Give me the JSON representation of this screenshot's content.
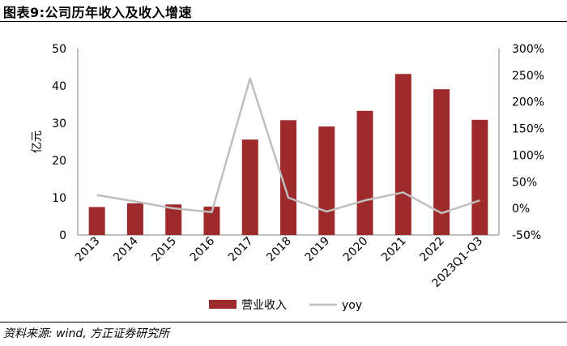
{
  "figure": {
    "title": "图表9:公司历年收入及收入增速",
    "source": "资料来源: wind, 方正证券研究所"
  },
  "chart_data": {
    "type": "bar",
    "title": "",
    "categories": [
      "2013",
      "2014",
      "2015",
      "2016",
      "2017",
      "2018",
      "2019",
      "2020",
      "2021",
      "2022",
      "2023Q1-Q3"
    ],
    "ylabel": "亿元",
    "ylim": [
      0,
      50
    ],
    "yticks": [
      "0",
      "10",
      "20",
      "30",
      "40",
      "50"
    ],
    "y2lim": [
      -50,
      300
    ],
    "y2ticks": [
      "-50%",
      "0%",
      "50%",
      "100%",
      "150%",
      "200%",
      "250%",
      "300%"
    ],
    "series": [
      {
        "name": "营业收入",
        "type": "bar",
        "axis": "left",
        "color": "#9e2a2b",
        "values": [
          7.5,
          8.5,
          8.2,
          7.6,
          25.6,
          30.8,
          29.1,
          33.3,
          43.2,
          39.1,
          30.9
        ]
      },
      {
        "name": "yoy",
        "type": "line",
        "axis": "right",
        "color": "#bfbfbf",
        "values": [
          25,
          13,
          0,
          -7,
          244,
          20,
          -6,
          15,
          30,
          -9,
          15
        ]
      }
    ],
    "grid": false,
    "legend": "bottom-center"
  }
}
